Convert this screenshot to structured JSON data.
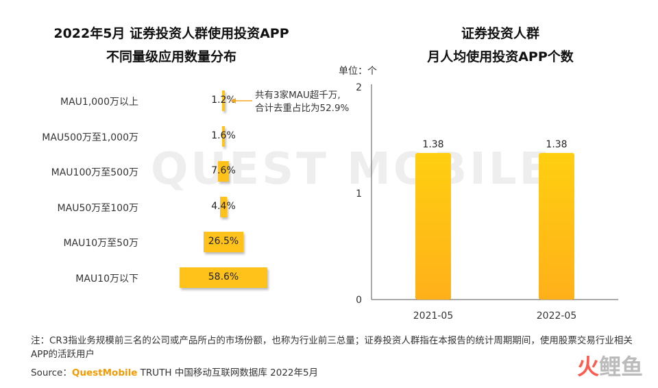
{
  "watermark": "QUEST MOBILE",
  "left_chart": {
    "title_line1": "2022年5月 证券投资人群使用投资APP",
    "title_line2": "不同量级应用数量分布",
    "annotation_line1": "共有3家MAU超千万,",
    "annotation_line2": "合计去重占比为52.9%"
  },
  "right_chart": {
    "title_line1": "证券投资人群",
    "title_line2": "月人均使用投资APP个数",
    "unit": "单位：个"
  },
  "chart_data": [
    {
      "type": "bar",
      "orientation": "horizontal-funnel",
      "categories": [
        "MAU1,000万以上",
        "MAU500万至1,000万",
        "MAU100万至500万",
        "MAU50万至100万",
        "MAU10万至50万",
        "MAU10万以下"
      ],
      "values": [
        1.2,
        1.6,
        7.6,
        4.4,
        26.5,
        58.6
      ],
      "value_labels": [
        "1.2%",
        "1.6%",
        "7.6%",
        "4.4%",
        "26.5%",
        "58.6%"
      ],
      "unit": "%",
      "color": "#ffc21a"
    },
    {
      "type": "bar",
      "categories": [
        "2021-05",
        "2022-05"
      ],
      "values": [
        1.38,
        1.38
      ],
      "value_labels": [
        "1.38",
        "1.38"
      ],
      "yticks": [
        "0",
        "1",
        "2"
      ],
      "ylim": [
        0,
        2
      ],
      "color_top": "#ffcf10",
      "color_bottom": "#ffb01a"
    }
  ],
  "footer": {
    "note": "注：CR3指业务规模前三名的公司或产品所占的市场份额，也称为行业前三总量；证券投资人群指在本报告的统计周期期间，使用股票交易行业相关APP的活跃用户",
    "source_prefix": "Source：",
    "source_brand": "QuestMobile",
    "source_rest": " TRUTH 中国移动互联网数据库 2022年5月"
  },
  "corner_logo": {
    "part1": "火",
    "part2": "鲤鱼"
  }
}
